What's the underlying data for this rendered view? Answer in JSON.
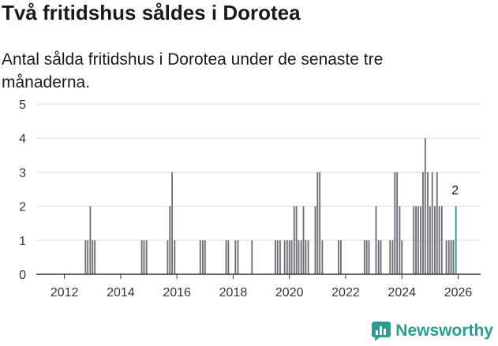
{
  "title": "Två fritidshus såldes i Dorotea",
  "subtitle": "Antal sålda fritidshus i Dorotea under de senaste tre månaderna.",
  "brand": {
    "name": "Newsworthy",
    "icon": "bar-chart-logo-icon"
  },
  "chart_data": {
    "type": "bar",
    "title": "Antal sålda fritidshus i Dorotea under de senaste tre månaderna.",
    "xlabel": "",
    "ylabel": "",
    "xlim": [
      2011.0,
      2026.8
    ],
    "ylim": [
      0,
      5
    ],
    "yticks": [
      0,
      1,
      2,
      3,
      4,
      5
    ],
    "xticks": [
      2012,
      2014,
      2016,
      2018,
      2020,
      2022,
      2024,
      2026
    ],
    "grid": true,
    "colors": {
      "bars": "#6e6d74",
      "highlight": "#2a9d8f",
      "grid": "#dddddd",
      "axis": "#333333"
    },
    "highlight_label": "2",
    "series": [
      {
        "name": "Antal sålda fritidshus",
        "points": [
          [
            2012.75,
            1
          ],
          [
            2012.83,
            1
          ],
          [
            2012.92,
            2
          ],
          [
            2013.0,
            1
          ],
          [
            2013.08,
            1
          ],
          [
            2014.75,
            1
          ],
          [
            2014.83,
            1
          ],
          [
            2014.92,
            1
          ],
          [
            2015.67,
            1
          ],
          [
            2015.75,
            2
          ],
          [
            2015.83,
            3
          ],
          [
            2015.92,
            1
          ],
          [
            2016.83,
            1
          ],
          [
            2016.92,
            1
          ],
          [
            2017.0,
            1
          ],
          [
            2017.75,
            1
          ],
          [
            2017.83,
            1
          ],
          [
            2018.08,
            1
          ],
          [
            2018.17,
            1
          ],
          [
            2018.67,
            1
          ],
          [
            2019.5,
            1
          ],
          [
            2019.58,
            1
          ],
          [
            2019.67,
            1
          ],
          [
            2019.83,
            1
          ],
          [
            2019.92,
            1
          ],
          [
            2020.0,
            1
          ],
          [
            2020.08,
            1
          ],
          [
            2020.17,
            2
          ],
          [
            2020.25,
            2
          ],
          [
            2020.33,
            1
          ],
          [
            2020.42,
            1
          ],
          [
            2020.5,
            2
          ],
          [
            2020.58,
            1
          ],
          [
            2020.67,
            1
          ],
          [
            2020.92,
            2
          ],
          [
            2021.0,
            3
          ],
          [
            2021.08,
            3
          ],
          [
            2021.17,
            1
          ],
          [
            2021.75,
            1
          ],
          [
            2021.83,
            1
          ],
          [
            2022.67,
            1
          ],
          [
            2022.75,
            1
          ],
          [
            2022.83,
            1
          ],
          [
            2023.08,
            2
          ],
          [
            2023.17,
            1
          ],
          [
            2023.25,
            1
          ],
          [
            2023.58,
            1
          ],
          [
            2023.67,
            1
          ],
          [
            2023.75,
            3
          ],
          [
            2023.83,
            3
          ],
          [
            2023.92,
            2
          ],
          [
            2024.0,
            1
          ],
          [
            2024.42,
            2
          ],
          [
            2024.5,
            2
          ],
          [
            2024.58,
            2
          ],
          [
            2024.67,
            2
          ],
          [
            2024.75,
            3
          ],
          [
            2024.83,
            4
          ],
          [
            2024.92,
            3
          ],
          [
            2025.0,
            2
          ],
          [
            2025.08,
            3
          ],
          [
            2025.17,
            2
          ],
          [
            2025.25,
            3
          ],
          [
            2025.33,
            2
          ],
          [
            2025.42,
            2
          ],
          [
            2025.58,
            1
          ],
          [
            2025.67,
            1
          ],
          [
            2025.75,
            1
          ],
          [
            2025.83,
            1
          ],
          [
            2025.92,
            2
          ]
        ]
      }
    ]
  }
}
